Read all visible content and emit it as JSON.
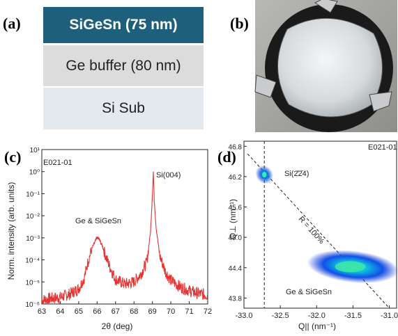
{
  "labels": {
    "a": "(a)",
    "b": "(b)",
    "c": "(c)",
    "d": "(d)"
  },
  "layers": [
    {
      "text": "SiGeSn (75 nm)",
      "color": "#1e5f7c"
    },
    {
      "text": "Ge buffer (80 nm)",
      "color": "#dcdcdc"
    },
    {
      "text": "Si Sub",
      "color": "#e4e8ef"
    }
  ],
  "chart_data": [
    {
      "type": "line",
      "sample": "E021-01",
      "xlabel": "2θ (deg)",
      "ylabel": "Norm. intensity (arb. units)",
      "log_y": true,
      "xlim": [
        63,
        72
      ],
      "ylim": [
        1e-06,
        10
      ],
      "x_ticks": [
        "63",
        "64",
        "65",
        "66",
        "67",
        "68",
        "69",
        "70",
        "71",
        "72"
      ],
      "y_ticks": [
        "10⁻⁶",
        "10⁻⁵",
        "10⁻⁴",
        "10⁻³",
        "10⁻²",
        "10⁻¹",
        "10⁰",
        "10¹"
      ],
      "annotations": [
        "Si(004)",
        "Ge & SiGeSn"
      ],
      "series": [
        {
          "color": "#e63232",
          "x": [
            63.0,
            63.5,
            64.0,
            64.5,
            65.0,
            65.3,
            65.5,
            65.7,
            65.9,
            66.0,
            66.1,
            66.3,
            66.5,
            66.8,
            67.0,
            67.5,
            68.0,
            68.4,
            68.7,
            68.9,
            69.0,
            69.05,
            69.1,
            69.2,
            69.4,
            69.7,
            70.0,
            70.5,
            71.0,
            71.5,
            72.0
          ],
          "y": [
            1.5e-06,
            1.8e-06,
            2e-06,
            2.8e-06,
            5e-06,
            1.5e-05,
            8e-05,
            0.0003,
            0.0007,
            0.001,
            0.0009,
            0.0004,
            0.00012,
            3e-05,
            1.3e-05,
            8e-06,
            1e-05,
            2.5e-05,
            8e-05,
            0.002,
            0.1,
            1.0,
            0.05,
            0.003,
            0.00015,
            3e-05,
            1.2e-05,
            6e-06,
            4e-06,
            3e-06,
            2.5e-06
          ]
        }
      ]
    },
    {
      "type": "heatmap",
      "sample": "E021-01",
      "xlabel": "Q|| (nm⁻¹)",
      "ylabel": "Q⊥ (nm⁻¹)",
      "xlim": [
        -33.0,
        -30.9
      ],
      "ylim": [
        43.6,
        46.9
      ],
      "x_ticks": [
        "-33.0",
        "-32.5",
        "-32.0",
        "-31.5",
        "-31.0"
      ],
      "y_ticks": [
        "43.8",
        "44.4",
        "45.0",
        "45.6",
        "46.2",
        "46.8"
      ],
      "annotations": [
        "Si(2̄2̄4)",
        "R = 100%",
        "Ge & SiGeSn"
      ],
      "peaks": [
        {
          "name": "Si(2̄2̄4)",
          "qx": -32.72,
          "qz": 46.24
        },
        {
          "name": "Ge & SiGeSn",
          "qx": -31.5,
          "qz": 44.42
        }
      ],
      "vertical_line_qx": -32.72,
      "relaxation_line": [
        [
          -32.95,
          46.65
        ],
        [
          -31.0,
          43.6
        ]
      ]
    }
  ]
}
